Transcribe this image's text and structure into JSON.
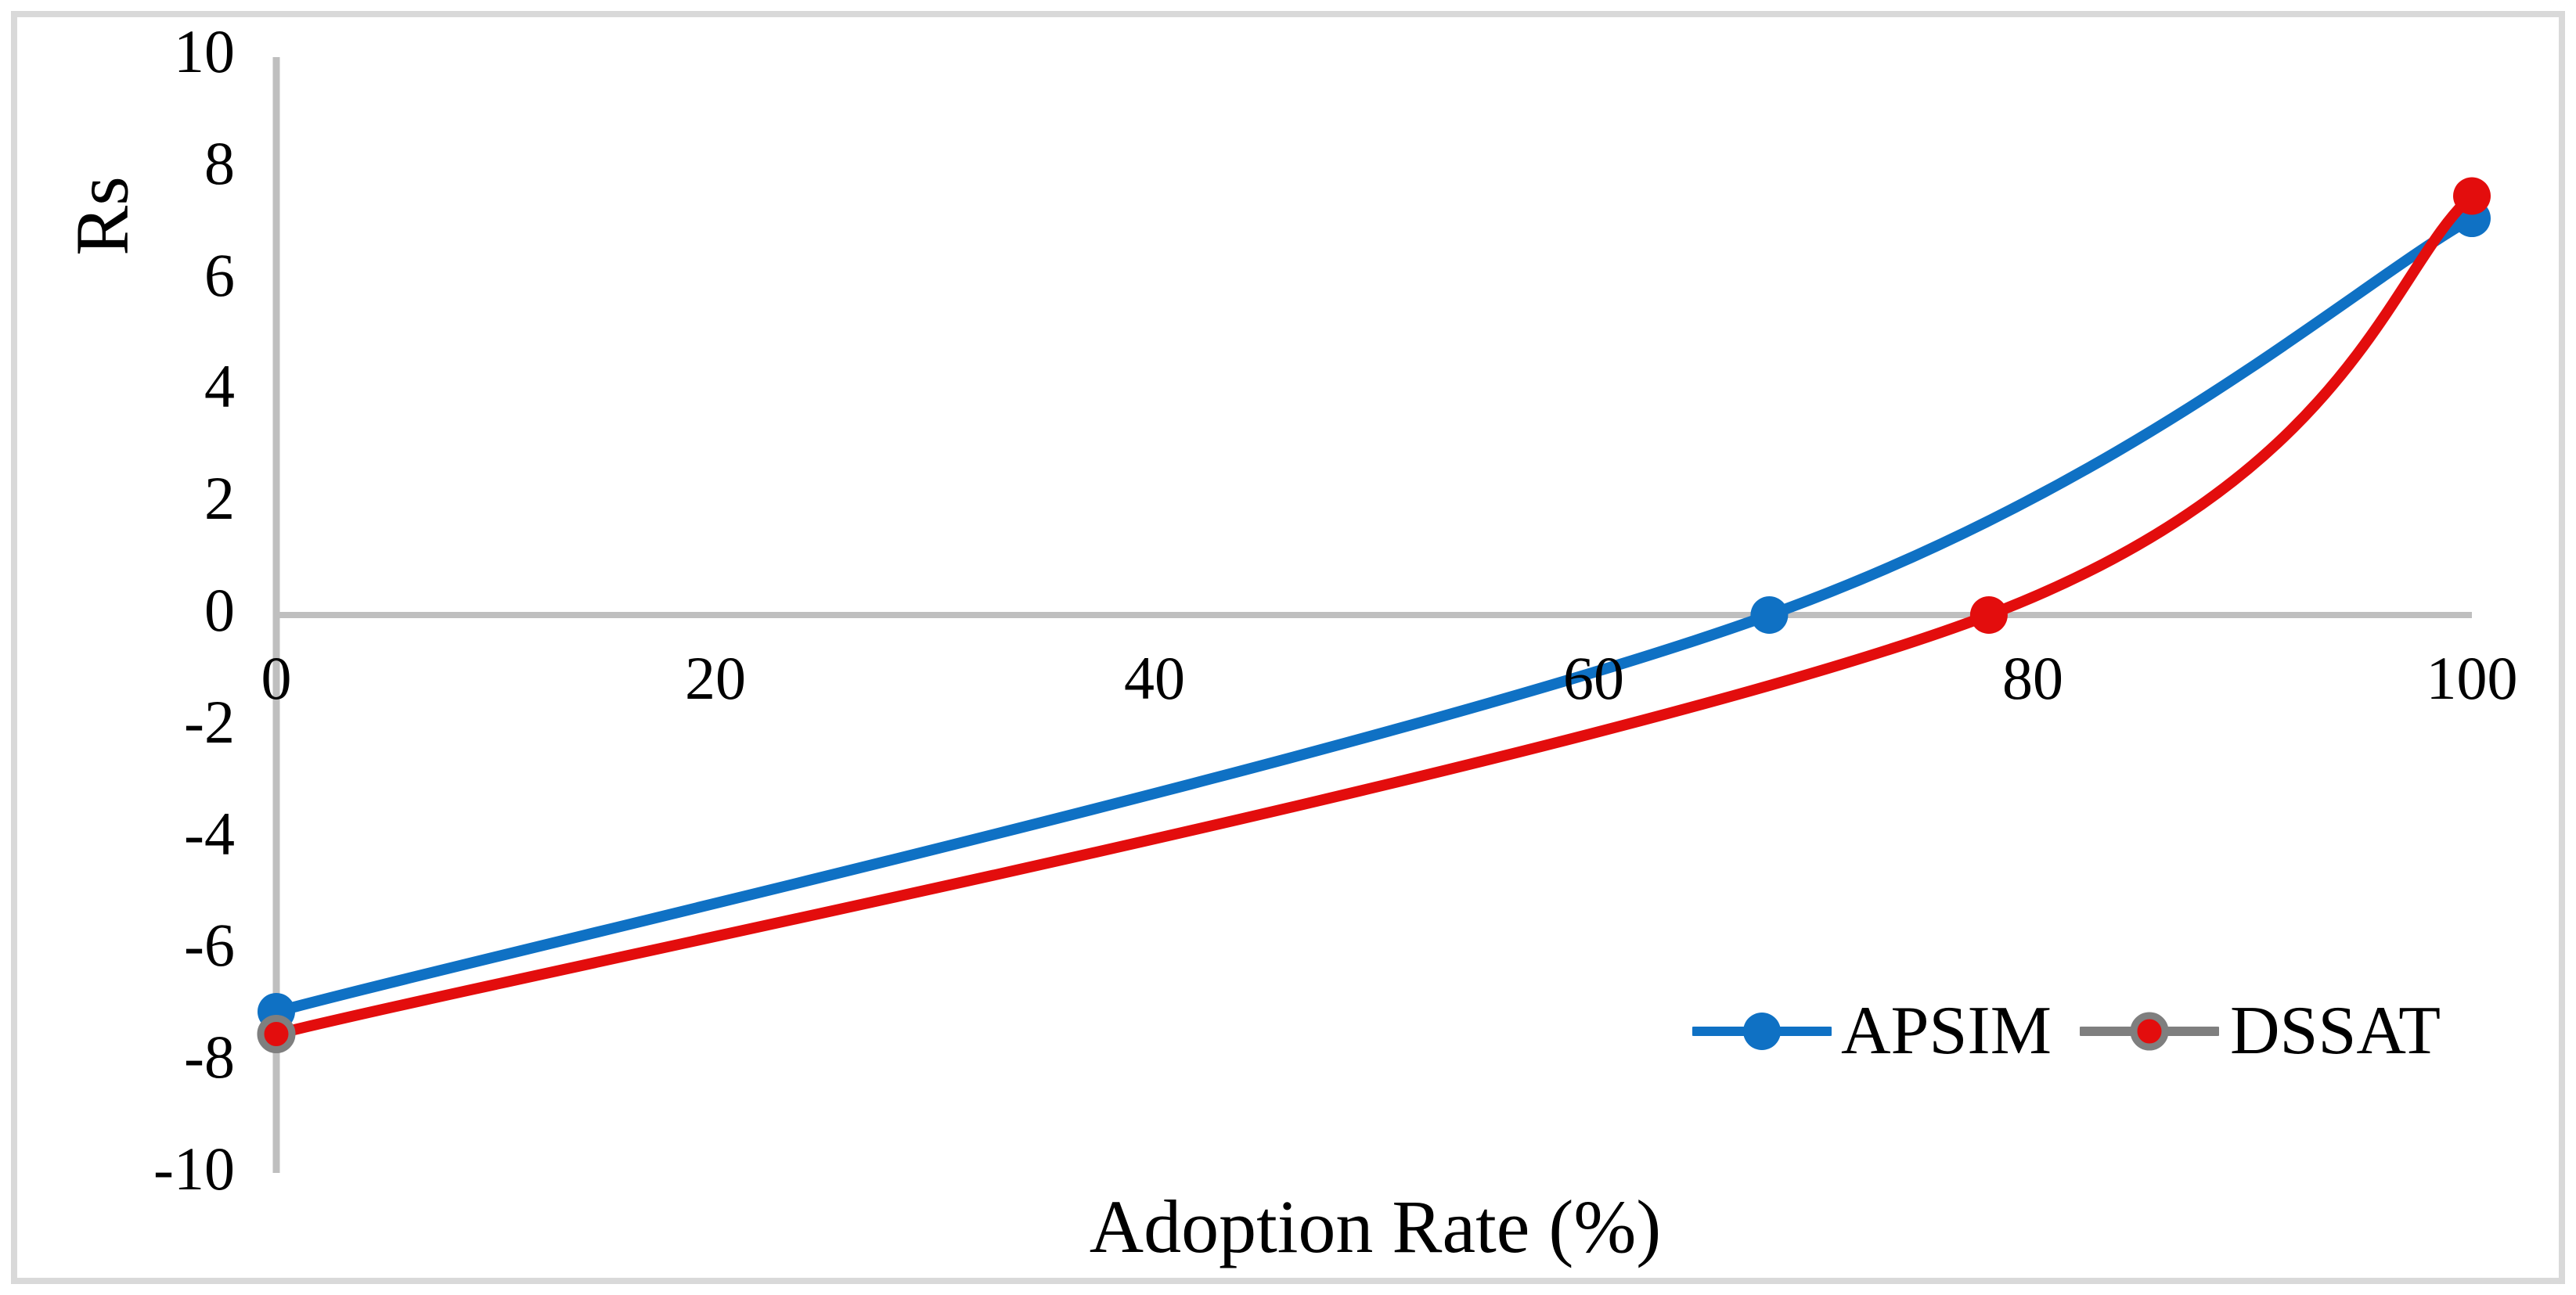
{
  "chart_data": {
    "type": "line",
    "title": "",
    "x_axis": {
      "label": "Adoption Rate (%)",
      "range": [
        0,
        100
      ],
      "ticks": [
        0,
        20,
        40,
        60,
        80,
        100
      ],
      "tick_label_position": "below zero line"
    },
    "y_axis": {
      "label": "Rs",
      "range": [
        -10,
        10
      ],
      "ticks": [
        10,
        8,
        6,
        4,
        2,
        0,
        -2,
        -4,
        -6,
        -8,
        -10
      ]
    },
    "grid": "horizontal zero line only",
    "line_style": "smooth",
    "legend_position": "inside bottom-right",
    "series": [
      {
        "name": "APSIM",
        "color": "#0f71c4",
        "marker": "circle",
        "marker_color": "#0f71c4",
        "legend_line_color": "#0f71c4",
        "outlined_point_indices": [],
        "points": [
          [
            0,
            -7.1
          ],
          [
            68,
            0
          ],
          [
            100,
            7.1
          ]
        ]
      },
      {
        "name": "DSSAT",
        "color": "#e30d0d",
        "marker": "circle",
        "marker_color": "#e30d0d",
        "marker_outline_color": "#7f7f7f",
        "legend_line_color": "#7f7f7f",
        "outlined_point_indices": [
          0
        ],
        "points": [
          [
            0,
            -7.5
          ],
          [
            78,
            0
          ],
          [
            100,
            7.5
          ]
        ]
      }
    ],
    "colors": {
      "axis_line": "#bfbfbf",
      "frame_border": "#d9d9d9",
      "text": "#000000",
      "background": "#ffffff"
    }
  }
}
